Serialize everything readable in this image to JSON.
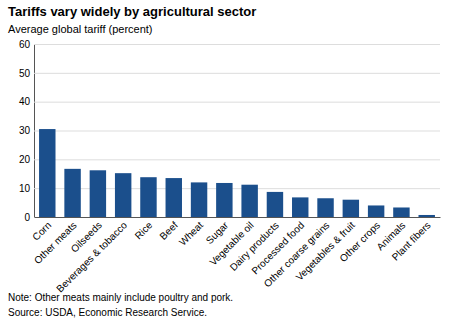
{
  "chart_data": {
    "type": "bar",
    "title": "Tariffs vary widely by agricultural sector",
    "ylabel": "Average global tariff (percent)",
    "categories": [
      "Corn",
      "Other meats",
      "Oilseeds",
      "Beverages & tobacco",
      "Rice",
      "Beef",
      "Wheat",
      "Sugar",
      "Vegetable oil",
      "Dairy products",
      "Processed food",
      "Other coarse grains",
      "Vegetables & fruit",
      "Other crops",
      "Animals",
      "Plant fibers"
    ],
    "values": [
      30.5,
      16.7,
      16.2,
      15.2,
      13.8,
      13.5,
      12.0,
      11.8,
      11.2,
      8.7,
      6.8,
      6.5,
      6.0,
      4.0,
      3.3,
      0.7
    ],
    "color": "#1b4f8c",
    "ylim": [
      0,
      60
    ],
    "yticks": [
      0,
      10,
      20,
      30,
      40,
      50,
      60
    ],
    "grid": true,
    "note": "Note: Other meats mainly include poultry and pork.",
    "source": "Source: USDA, Economic Research Service."
  }
}
